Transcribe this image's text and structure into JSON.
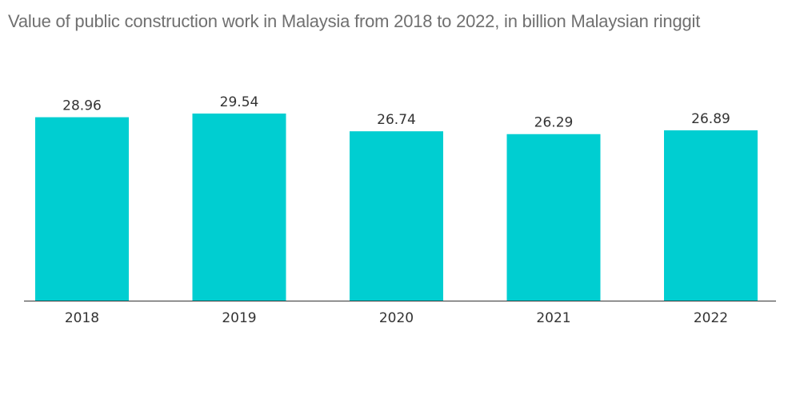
{
  "chart_data": {
    "type": "bar",
    "title": "Value of public construction work in Malaysia from 2018 to 2022, in billion Malaysian ringgit",
    "categories": [
      "2018",
      "2019",
      "2020",
      "2021",
      "2022"
    ],
    "values": [
      28.96,
      29.54,
      26.74,
      26.29,
      26.89
    ],
    "value_labels": [
      "28.96",
      "29.54",
      "26.74",
      "26.29",
      "26.89"
    ],
    "xlabel": "",
    "ylabel": "",
    "ylim": [
      0,
      29.54
    ],
    "grid": false,
    "legend": "none",
    "bar_color": "#00CED1",
    "axis_color": "#333333"
  }
}
